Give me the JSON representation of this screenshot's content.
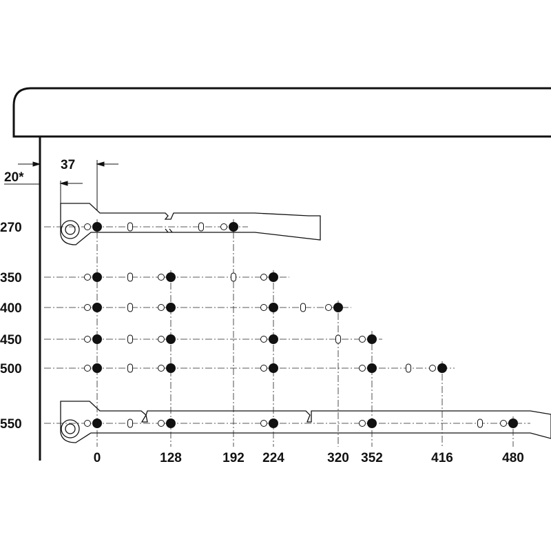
{
  "dimensions": {
    "setback": "37",
    "offset": "20*"
  },
  "rows": [
    "270",
    "350",
    "400",
    "450",
    "500",
    "550"
  ],
  "columns": [
    "0",
    "128",
    "192",
    "224",
    "320",
    "352",
    "416",
    "480"
  ]
}
